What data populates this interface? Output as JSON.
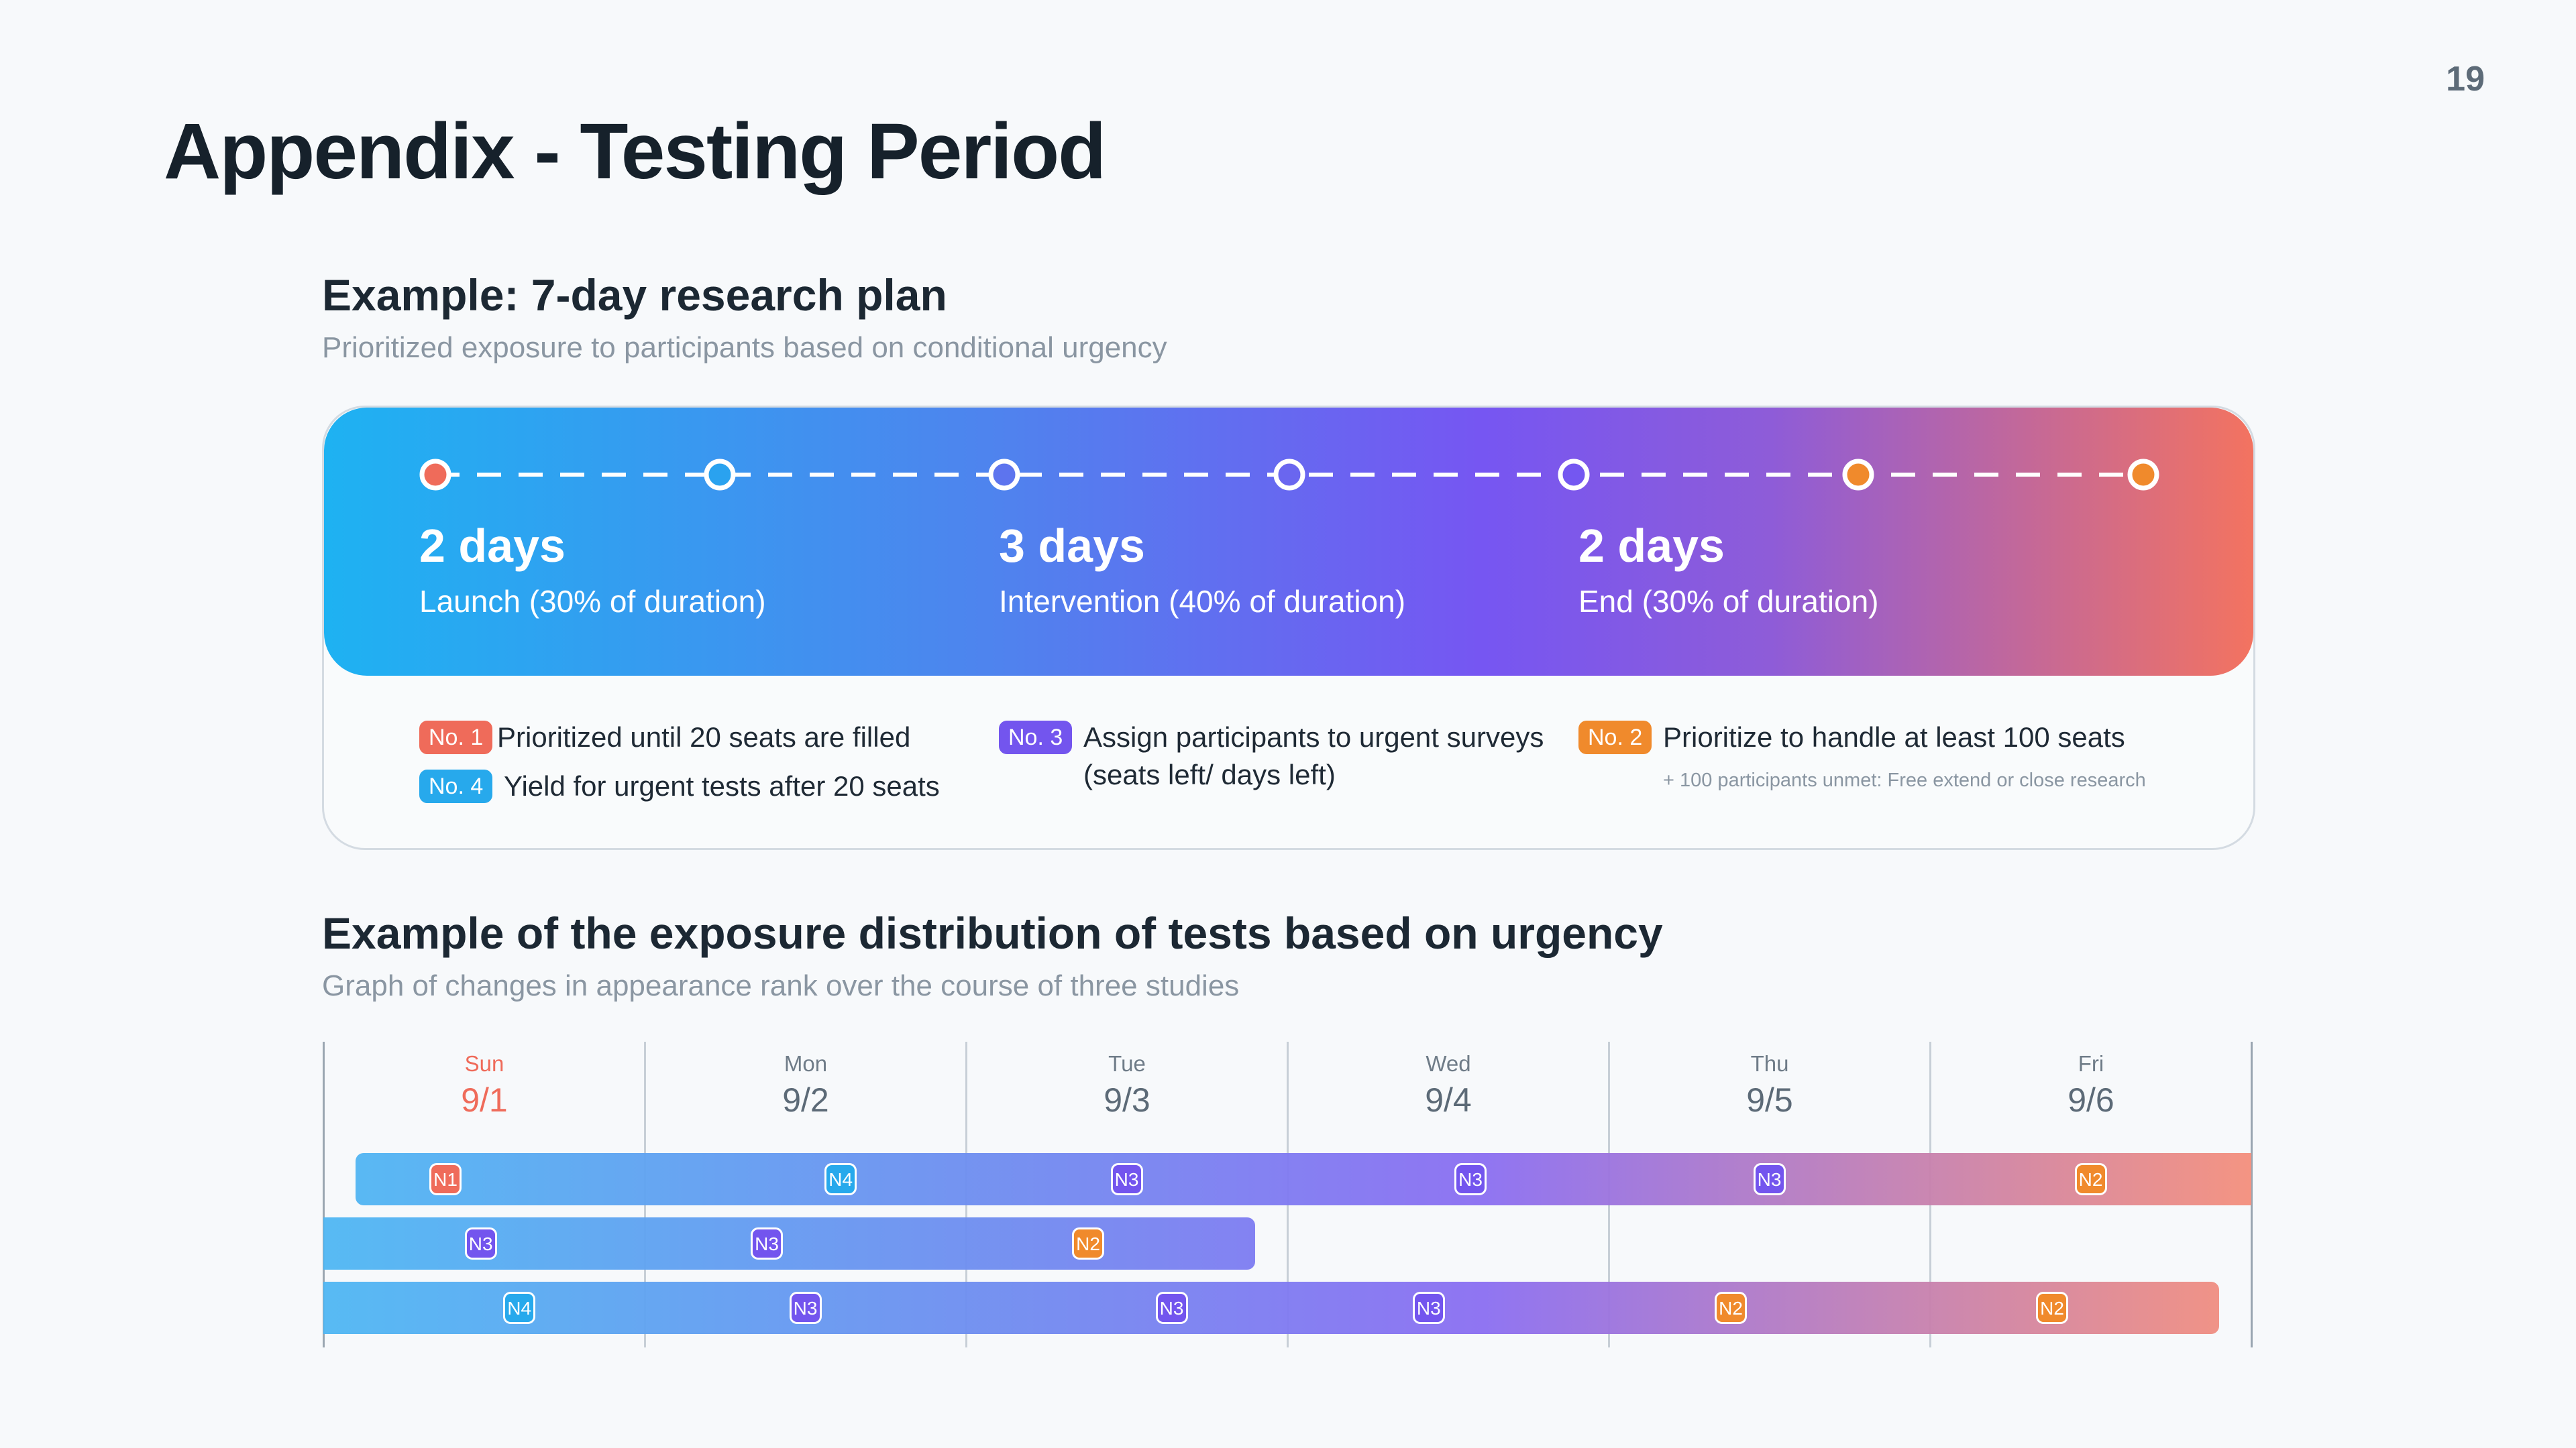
{
  "page_number": "19",
  "page_title": "Appendix - Testing Period",
  "plan": {
    "title": "Example: 7-day research plan",
    "subtitle": "Prioritized exposure to participants based on conditional urgency",
    "phases": [
      {
        "days": "2 days",
        "desc": "Launch (30% of duration)"
      },
      {
        "days": "3 days",
        "desc": "Intervention (40% of duration)"
      },
      {
        "days": "2 days",
        "desc": "End  (30% of duration)"
      }
    ],
    "rules": [
      {
        "badge": "No. 1",
        "color": "#ef6b5a",
        "text": "Prioritized until 20 seats are filled"
      },
      {
        "badge": "No. 4",
        "color": "#27a9ec",
        "text": "Yield for urgent tests after 20 seats"
      },
      {
        "badge": "No. 3",
        "color": "#7355ee",
        "text": "Assign participants to urgent surveys",
        "text2": "(seats left/ days left)"
      },
      {
        "badge": "No. 2",
        "color": "#f08a2c",
        "text": "Prioritize to handle at least 100 seats",
        "note": "+ 100 participants unmet: Free extend or close research"
      }
    ]
  },
  "distribution": {
    "title": "Example of the exposure distribution of tests based on urgency",
    "subtitle": "Graph of changes in appearance rank over the course of three studies",
    "days": [
      {
        "name": "Sun",
        "date": "9/1",
        "highlight": true
      },
      {
        "name": "Mon",
        "date": "9/2"
      },
      {
        "name": "Tue",
        "date": "9/3"
      },
      {
        "name": "Wed",
        "date": "9/4"
      },
      {
        "name": "Thu",
        "date": "9/5"
      },
      {
        "name": "Fri",
        "date": "9/6"
      }
    ],
    "tag_colors": {
      "N1": "#ef6b5a",
      "N2": "#f08a2c",
      "N3": "#7355ee",
      "N4": "#27a9ec"
    },
    "bars": [
      {
        "start": 0.1,
        "end": 6.0,
        "tags": [
          {
            "label": "N1",
            "pos": 0.38
          },
          {
            "label": "N4",
            "pos": 1.61
          },
          {
            "label": "N3",
            "pos": 2.5
          },
          {
            "label": "N3",
            "pos": 3.57
          },
          {
            "label": "N3",
            "pos": 4.5
          },
          {
            "label": "N2",
            "pos": 5.5
          }
        ]
      },
      {
        "start": 0.0,
        "end": 2.9,
        "tags": [
          {
            "label": "N3",
            "pos": 0.49
          },
          {
            "label": "N3",
            "pos": 1.38
          },
          {
            "label": "N2",
            "pos": 2.38
          }
        ]
      },
      {
        "start": 0.0,
        "end": 5.9,
        "tags": [
          {
            "label": "N4",
            "pos": 0.61
          },
          {
            "label": "N3",
            "pos": 1.5
          },
          {
            "label": "N3",
            "pos": 2.64
          },
          {
            "label": "N3",
            "pos": 3.44
          },
          {
            "label": "N2",
            "pos": 4.38
          },
          {
            "label": "N2",
            "pos": 5.38
          }
        ]
      }
    ]
  }
}
